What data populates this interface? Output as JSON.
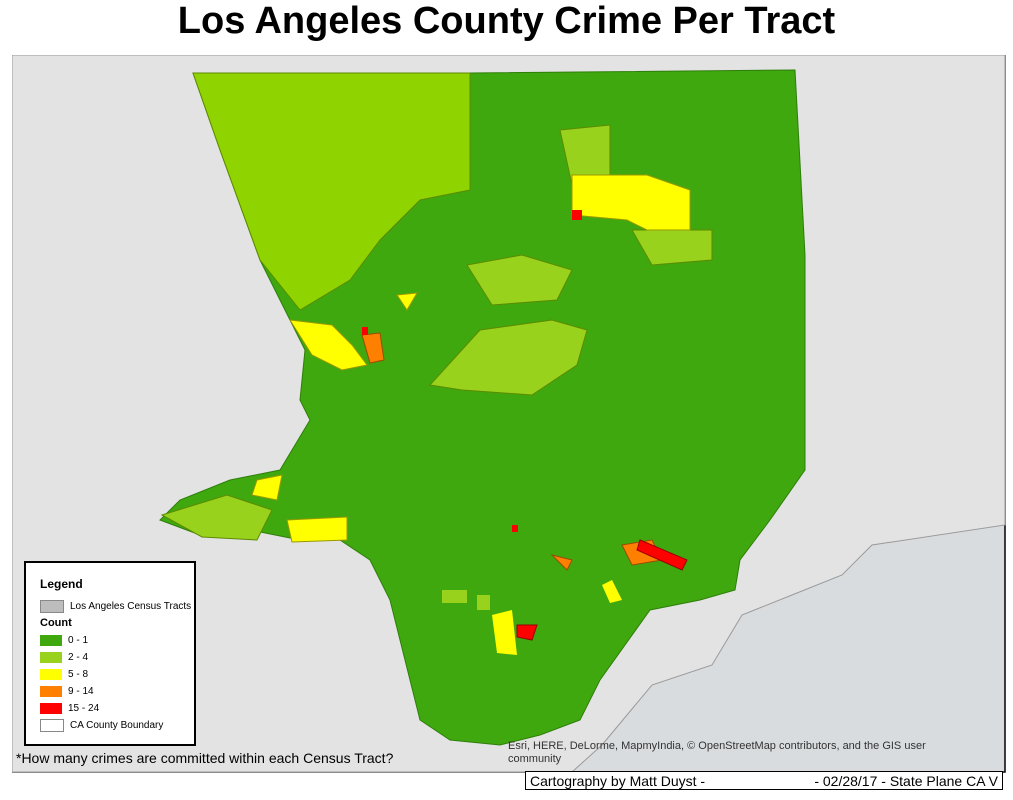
{
  "title": "Los Angeles County Crime Per Tract",
  "legend": {
    "title": "Legend",
    "layers": [
      "Los Angeles Census Tracts"
    ],
    "count_title": "Count",
    "classes": [
      {
        "label": "0 - 1",
        "color": "#3ea80e"
      },
      {
        "label": "2 - 4",
        "color": "#98d21c"
      },
      {
        "label": "5 - 8",
        "color": "#ffff00"
      },
      {
        "label": "9 - 14",
        "color": "#ff8000"
      },
      {
        "label": "15 - 24",
        "color": "#ff0000"
      }
    ],
    "boundary": "CA County Boundary"
  },
  "footnote": "*How many crimes are committed within each Census Tract?",
  "attribution": "Esri, HERE, DeLorme, MapmyIndia, © OpenStreetMap contributors, and the GIS user community",
  "credit_left": "Cartography by Matt Duyst -",
  "credit_right": "- 02/28/17 - State Plane CA V"
}
